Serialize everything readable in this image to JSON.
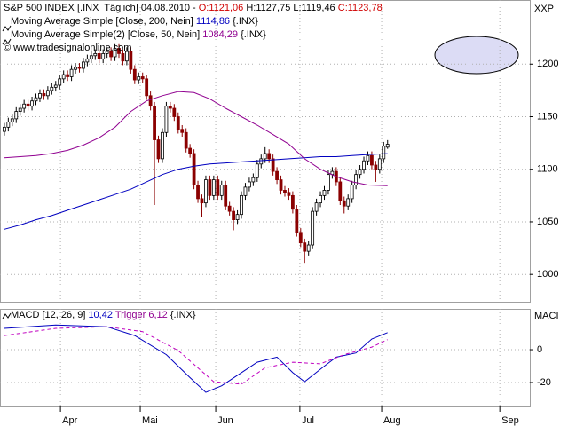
{
  "chart_data": [
    {
      "type": "candlestick",
      "title": "S&P 500 INDEX [.INX  Täglich] 04.08.2010 -",
      "ohlc_labels": [
        "O:1121,06",
        "H:1127,75",
        "L:1119,46",
        "C:1123,78"
      ],
      "source_text": "© www.tradesignalonline.com",
      "axis_label": "XXP",
      "xlim": [
        -1.1,
        133
      ],
      "ylim": [
        974,
        1261
      ],
      "yticks": [
        1000,
        1050,
        1100,
        1150,
        1200
      ],
      "grid": true,
      "up_color": "#ffffff",
      "down_color": "#8b0000",
      "outline_color": "#000000",
      "candles": [
        [
          1136,
          1144,
          1132,
          1140
        ],
        [
          1140,
          1149,
          1136,
          1145
        ],
        [
          1145,
          1152,
          1141,
          1148
        ],
        [
          1148,
          1159,
          1144,
          1155
        ],
        [
          1155,
          1162,
          1151,
          1158
        ],
        [
          1158,
          1166,
          1154,
          1162
        ],
        [
          1162,
          1166,
          1156,
          1160
        ],
        [
          1160,
          1169,
          1156,
          1165
        ],
        [
          1165,
          1172,
          1161,
          1168
        ],
        [
          1168,
          1176,
          1164,
          1172
        ],
        [
          1172,
          1176,
          1166,
          1170
        ],
        [
          1170,
          1179,
          1166,
          1175
        ],
        [
          1175,
          1182,
          1171,
          1178
        ],
        [
          1178,
          1184,
          1174,
          1180
        ],
        [
          1180,
          1190,
          1176,
          1186
        ],
        [
          1186,
          1194,
          1182,
          1190
        ],
        [
          1190,
          1194,
          1184,
          1188
        ],
        [
          1188,
          1199,
          1184,
          1195
        ],
        [
          1195,
          1201,
          1191,
          1197
        ],
        [
          1197,
          1201,
          1192,
          1196
        ],
        [
          1196,
          1206,
          1192,
          1202
        ],
        [
          1202,
          1209,
          1198,
          1205
        ],
        [
          1205,
          1212,
          1201,
          1208
        ],
        [
          1208,
          1214,
          1204,
          1210
        ],
        [
          1210,
          1214,
          1201,
          1205
        ],
        [
          1205,
          1214,
          1201,
          1210
        ],
        [
          1210,
          1216,
          1206,
          1212
        ],
        [
          1212,
          1216,
          1203,
          1207
        ],
        [
          1207,
          1219,
          1203,
          1215
        ],
        [
          1215,
          1219,
          1206,
          1210
        ],
        [
          1210,
          1214,
          1199,
          1203
        ],
        [
          1203,
          1216,
          1199,
          1212
        ],
        [
          1212,
          1216,
          1191,
          1195
        ],
        [
          1195,
          1199,
          1181,
          1185
        ],
        [
          1185,
          1192,
          1181,
          1188
        ],
        [
          1188,
          1192,
          1182,
          1186
        ],
        [
          1186,
          1190,
          1166,
          1170
        ],
        [
          1170,
          1174,
          1156,
          1160
        ],
        [
          1160,
          1164,
          1066,
          1128
        ],
        [
          1128,
          1132,
          1106,
          1110
        ],
        [
          1110,
          1139,
          1106,
          1135
        ],
        [
          1135,
          1164,
          1131,
          1160
        ],
        [
          1160,
          1164,
          1154,
          1158
        ],
        [
          1158,
          1162,
          1146,
          1150
        ],
        [
          1150,
          1154,
          1134,
          1138
        ],
        [
          1138,
          1142,
          1131,
          1135
        ],
        [
          1135,
          1139,
          1116,
          1120
        ],
        [
          1120,
          1124,
          1111,
          1115
        ],
        [
          1115,
          1119,
          1081,
          1085
        ],
        [
          1085,
          1089,
          1068,
          1072
        ],
        [
          1072,
          1076,
          1055,
          1068
        ],
        [
          1068,
          1094,
          1064,
          1090
        ],
        [
          1090,
          1094,
          1071,
          1075
        ],
        [
          1075,
          1094,
          1071,
          1090
        ],
        [
          1090,
          1094,
          1071,
          1075
        ],
        [
          1075,
          1089,
          1071,
          1085
        ],
        [
          1085,
          1089,
          1061,
          1065
        ],
        [
          1065,
          1069,
          1056,
          1060
        ],
        [
          1060,
          1064,
          1042,
          1052
        ],
        [
          1052,
          1061,
          1048,
          1057
        ],
        [
          1057,
          1079,
          1053,
          1075
        ],
        [
          1075,
          1087,
          1071,
          1083
        ],
        [
          1083,
          1092,
          1079,
          1088
        ],
        [
          1088,
          1096,
          1084,
          1092
        ],
        [
          1092,
          1109,
          1088,
          1105
        ],
        [
          1105,
          1114,
          1101,
          1110
        ],
        [
          1110,
          1121,
          1106,
          1115
        ],
        [
          1115,
          1119,
          1106,
          1110
        ],
        [
          1110,
          1114,
          1094,
          1098
        ],
        [
          1098,
          1102,
          1086,
          1090
        ],
        [
          1090,
          1094,
          1076,
          1080
        ],
        [
          1080,
          1084,
          1074,
          1078
        ],
        [
          1078,
          1082,
          1071,
          1075
        ],
        [
          1075,
          1079,
          1058,
          1062
        ],
        [
          1062,
          1066,
          1036,
          1040
        ],
        [
          1040,
          1044,
          1026,
          1030
        ],
        [
          1030,
          1034,
          1011,
          1022
        ],
        [
          1022,
          1032,
          1018,
          1028
        ],
        [
          1028,
          1064,
          1024,
          1060
        ],
        [
          1060,
          1072,
          1056,
          1068
        ],
        [
          1068,
          1079,
          1064,
          1075
        ],
        [
          1075,
          1084,
          1071,
          1080
        ],
        [
          1080,
          1099,
          1076,
          1095
        ],
        [
          1095,
          1102,
          1091,
          1098
        ],
        [
          1098,
          1102,
          1084,
          1088
        ],
        [
          1088,
          1092,
          1066,
          1070
        ],
        [
          1070,
          1074,
          1058,
          1065
        ],
        [
          1065,
          1076,
          1061,
          1072
        ],
        [
          1072,
          1089,
          1068,
          1085
        ],
        [
          1085,
          1099,
          1081,
          1095
        ],
        [
          1095,
          1104,
          1091,
          1100
        ],
        [
          1100,
          1112,
          1096,
          1108
        ],
        [
          1108,
          1117,
          1104,
          1113
        ],
        [
          1113,
          1117,
          1100,
          1104
        ],
        [
          1104,
          1108,
          1088,
          1100
        ],
        [
          1100,
          1114,
          1096,
          1110
        ],
        [
          1110,
          1126,
          1106,
          1122
        ],
        [
          1121.06,
          1127.75,
          1119.46,
          1123.78
        ]
      ],
      "series": [
        {
          "name": "Moving Average Simple [Close, 200, Nein]",
          "value_label": "1114,86",
          "source": "{.INX}",
          "color": "#0000c0",
          "x": [
            0,
            4,
            8,
            12,
            16,
            20,
            24,
            28,
            32,
            36,
            40,
            44,
            48,
            52,
            56,
            60,
            64,
            68,
            72,
            76,
            80,
            84,
            88,
            92,
            97
          ],
          "values": [
            1043,
            1047,
            1052,
            1056,
            1061,
            1066,
            1071,
            1076,
            1081,
            1088,
            1095,
            1100,
            1103,
            1105,
            1106,
            1107,
            1108,
            1109,
            1110,
            1111,
            1112,
            1112,
            1113,
            1114,
            1114.86
          ]
        },
        {
          "name": "Moving Average Simple(2) [Close, 50, Nein]",
          "value_label": "1084,29",
          "source": "{.INX}",
          "color": "#900090",
          "x": [
            0,
            4,
            8,
            12,
            16,
            20,
            24,
            28,
            32,
            36,
            40,
            44,
            48,
            52,
            56,
            60,
            64,
            68,
            72,
            76,
            80,
            84,
            88,
            92,
            97
          ],
          "values": [
            1111,
            1112,
            1113,
            1115,
            1118,
            1123,
            1130,
            1140,
            1155,
            1165,
            1170,
            1174,
            1173,
            1167,
            1158,
            1150,
            1142,
            1133,
            1124,
            1110,
            1100,
            1093,
            1088,
            1085,
            1084.29
          ]
        }
      ]
    },
    {
      "type": "line",
      "axis_label": "MACI",
      "source": "{.INX}",
      "xlim": [
        -1.1,
        133
      ],
      "ylim": [
        -34.6,
        24.9
      ],
      "yticks": [
        0,
        -20
      ],
      "grid": true,
      "xticks": [
        {
          "value": 14.2,
          "label": "Apr"
        },
        {
          "value": 34.4,
          "label": "Mai"
        },
        {
          "value": 53.5,
          "label": "Jun"
        },
        {
          "value": 74.8,
          "label": "Jul"
        },
        {
          "value": 95.5,
          "label": "Aug"
        },
        {
          "value": 125.4,
          "label": "Sep"
        }
      ],
      "series": [
        {
          "name": "MACD [12, 26, 9]",
          "value_label": "10,42",
          "color": "#0000c0",
          "dashed": false,
          "x": [
            0,
            13,
            26,
            33,
            41,
            47,
            51,
            55,
            60,
            64,
            69,
            73,
            76,
            81,
            84,
            89,
            93,
            97
          ],
          "values": [
            13,
            15,
            14,
            8.6,
            -3,
            -17,
            -26,
            -22,
            -14,
            -7.6,
            -4.5,
            -14,
            -19.5,
            -10,
            -4.5,
            -2,
            6.5,
            10.42
          ]
        },
        {
          "name": "Trigger",
          "value_label": "6,12",
          "color": "#c000c0",
          "dashed": true,
          "x": [
            0,
            13,
            26,
            35,
            44,
            53,
            60,
            66,
            73,
            80,
            86,
            93,
            97
          ],
          "values": [
            8.6,
            13,
            14,
            11,
            -0.5,
            -19.5,
            -21,
            -11,
            -7.6,
            -8.6,
            -3,
            1.6,
            6.12
          ]
        }
      ]
    }
  ]
}
